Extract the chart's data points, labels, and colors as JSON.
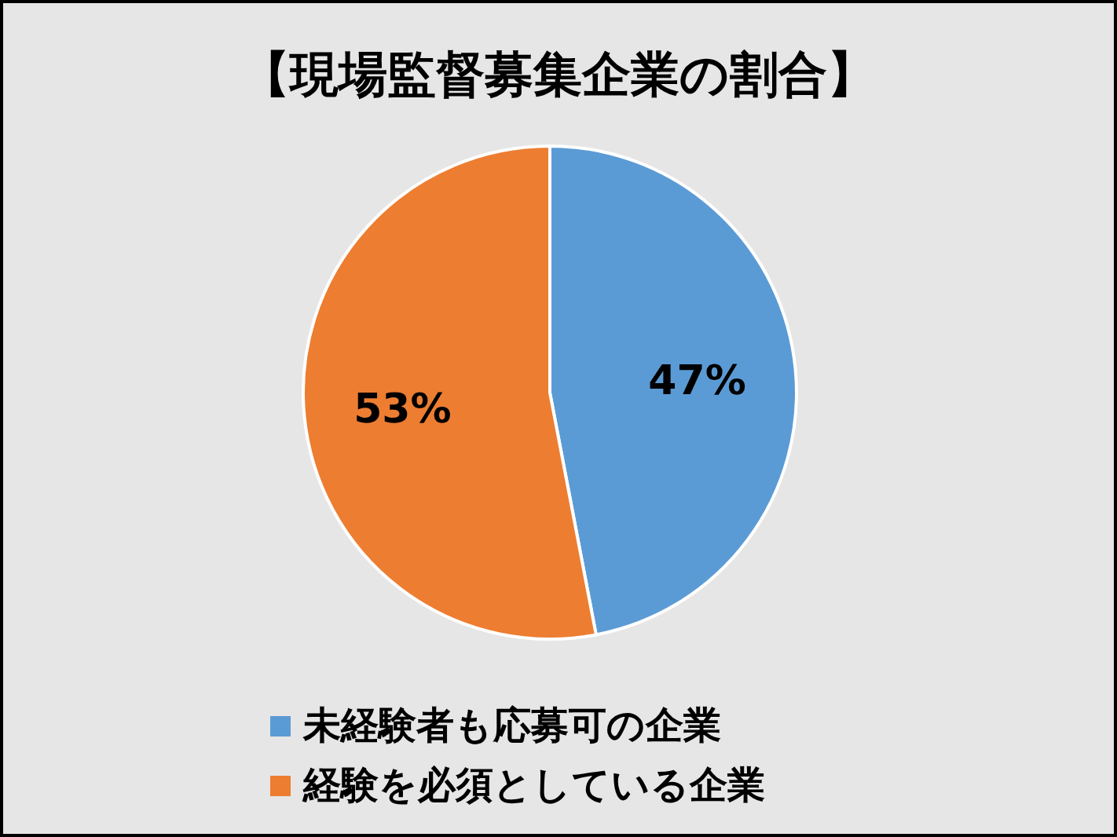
{
  "chart_data": {
    "type": "pie",
    "title": "【現場監督募集企業の割合】",
    "categories": [
      "未経験者も応募可の企業",
      "経験を必須としている企業"
    ],
    "values": [
      47,
      53
    ],
    "colors": [
      "#5b9bd5",
      "#ed7d31"
    ],
    "value_labels": [
      "47%",
      "53%"
    ],
    "legend": "bottom"
  }
}
